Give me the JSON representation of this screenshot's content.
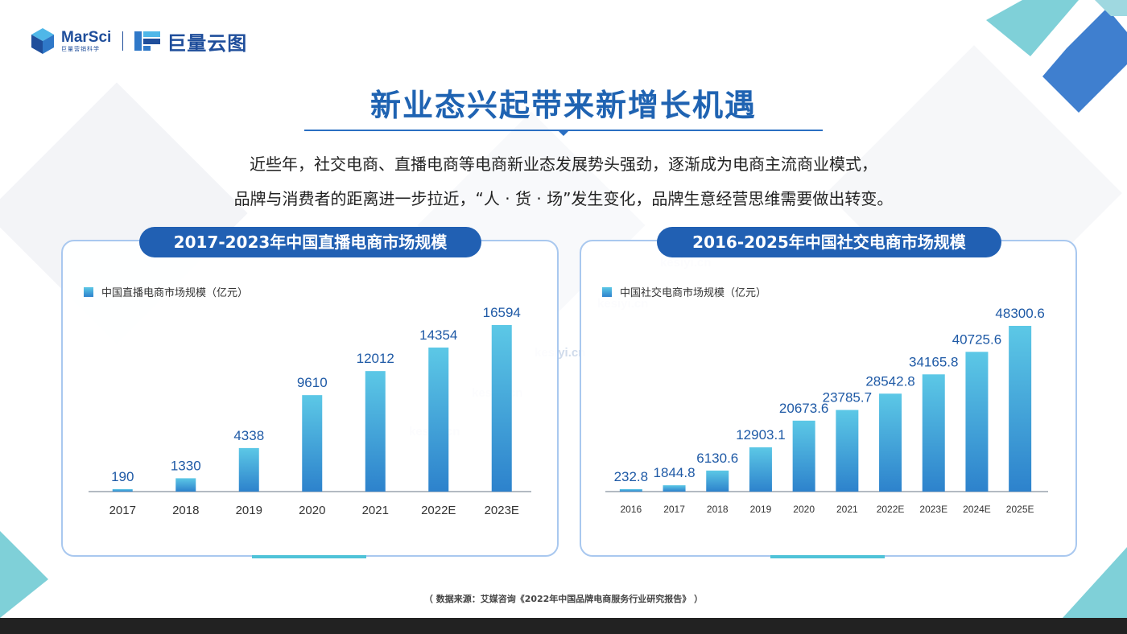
{
  "logo": {
    "marsci": "MarSci",
    "marsci_sub": "巨量营销科学",
    "juliang": "巨量云图"
  },
  "title": "新业态兴起带来新增长机遇",
  "subtitle_lines": [
    "近些年，社交电商、直播电商等电商新业态发展势头强劲，逐渐成为电商主流商业模式，",
    "品牌与消费者的距离进一步拉近，“人 · 货 · 场”发生变化，品牌生意经营思维需要做出转变。"
  ],
  "watermark": "kesiyi.cn",
  "source": "（ 数据来源：艾媒咨询《2022年中国品牌电商服务行业研究报告》 ）",
  "colors": {
    "title": "#1f63b2",
    "pill": "#2160b3",
    "bar_top": "#5cc8e6",
    "bar_bottom": "#2d82cc",
    "label": "#1f5aa6",
    "accent_teal": "#4fc3d8"
  },
  "chart_data": [
    {
      "type": "bar",
      "title": "2017-2023年中国直播电商市场规模",
      "legend": "中国直播电商市场规模（亿元）",
      "categories": [
        "2017",
        "2018",
        "2019",
        "2020",
        "2021",
        "2022E",
        "2023E"
      ],
      "values": [
        190,
        1330,
        4338,
        9610,
        12012,
        14354,
        16594
      ],
      "value_labels": [
        "190",
        "1330",
        "4338",
        "9610",
        "12012",
        "14354",
        "16594"
      ],
      "ylim": [
        0,
        16594
      ],
      "grid": false
    },
    {
      "type": "bar",
      "title": "2016-2025年中国社交电商市场规模",
      "legend": "中国社交电商市场规模（亿元）",
      "categories": [
        "2016",
        "2017",
        "2018",
        "2019",
        "2020",
        "2021",
        "2022E",
        "2023E",
        "2024E",
        "2025E"
      ],
      "values": [
        232.8,
        1844.8,
        6130.6,
        12903.1,
        20673.6,
        23785.7,
        28542.8,
        34165.8,
        40725.6,
        48300.6
      ],
      "value_labels": [
        "232.8",
        "1844.8",
        "6130.6",
        "12903.1",
        "20673.6",
        "23785.7",
        "28542.8",
        "34165.8",
        "40725.6",
        "48300.6"
      ],
      "ylim": [
        0,
        48300.6
      ],
      "grid": false
    }
  ]
}
